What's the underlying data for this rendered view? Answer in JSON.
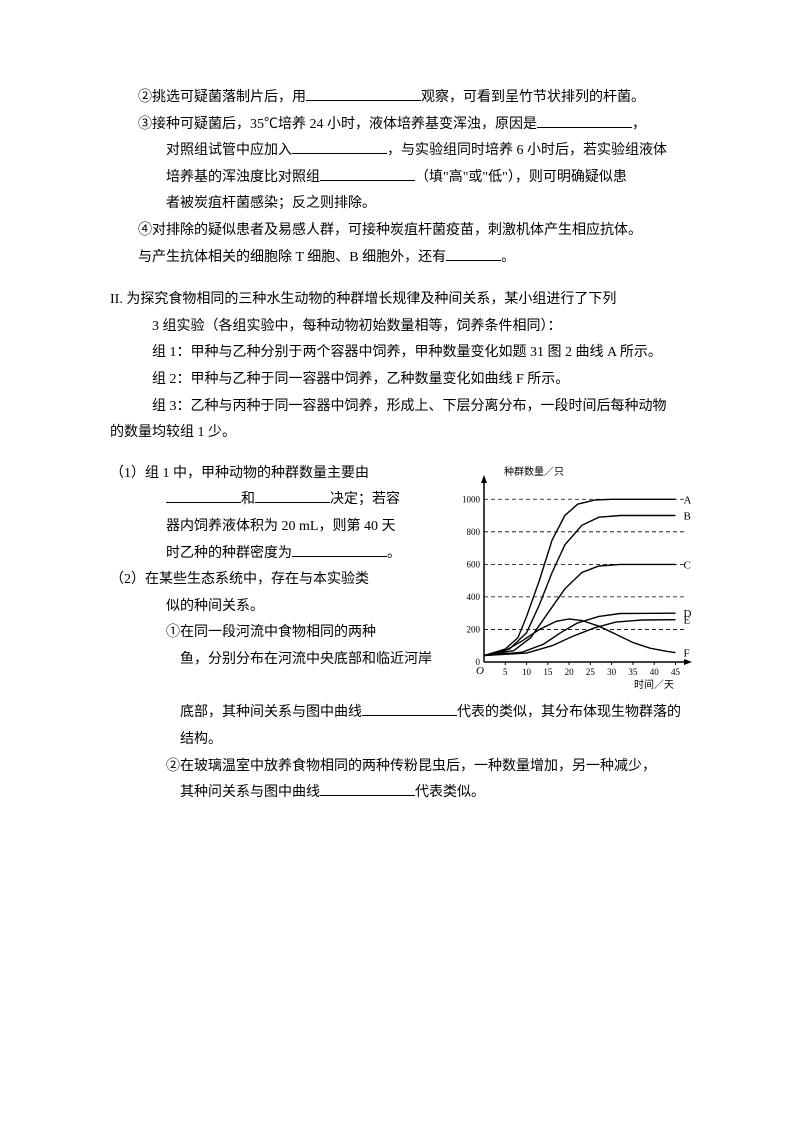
{
  "partI": {
    "q2": "②挑选可疑菌落制片后，用",
    "q2b": "观察，可看到呈竹节状排列的杆菌。",
    "q3a": "③接种可疑菌后，35℃培养 24 小时，液体培养基变浑浊，原因是",
    "q3b": "，",
    "q3c": "对照组试管中应加入",
    "q3d": "，与实验组同时培养 6 小时后，若实验组液体",
    "q3e": "培养基的浑浊度比对照组",
    "q3f": "（填\"高\"或\"低\"），则可明确疑似患",
    "q3g": "者被炭疽杆菌感染；反之则排除。",
    "q4a": "④对排除的疑似患者及易感人群，可接种炭疽杆菌疫苗，刺激机体产生相应抗体。",
    "q4b": "与产生抗体相关的细胞除 T 细胞、B 细胞外，还有",
    "q4c": "。"
  },
  "partII": {
    "heading": "II.    为探究食物相同的三种水生动物的种群增长规律及种间关系，某小组进行了下列",
    "heading2": "3 组实验（各组实验中，每种动物初始数量相等，饲养条件相同）：",
    "g1": "组 1：甲种与乙种分别于两个容器中饲养，甲种数量变化如题 31 图 2 曲线 A 所示。",
    "g2": "组 2：甲种与乙种于同一容器中饲养，乙种数量变化如曲线 F 所示。",
    "g3": "组 3：乙种与丙种于同一容器中饲养，形成上、下层分离分布，一段时间后每种动物",
    "g3b": "的数量均较组 1 少。",
    "q1a": "（1）组 1 中，甲种动物的种群数量主要由",
    "q1b": "和",
    "q1c": "决定；若容",
    "q1d": "器内饲养液体积为 20          mL，则第 40 天",
    "q1e": "时乙种的种群密度为",
    "q1f": "。",
    "q2a": "（2）在某些生态系统中，存在与本实验类",
    "q2b": "似的种间关系。",
    "q2c": "①在同一段河流中食物相同的两种",
    "q2d": "鱼，分别分布在河流中央底部和临近河岸",
    "q2e": "底部，其种间关系与图中曲线",
    "q2f": "代表的类似，其分布体现生物群落的",
    "q2g": "结构。",
    "q2h": "②在玻璃温室中放养食物相同的两种传粉昆虫后，一种数量增加，另一种减少，",
    "q2i": "其种问关系与图中曲线",
    "q2j": "代表类似。"
  },
  "chart": {
    "y_label": "种群数量／只",
    "x_label": "时间／天",
    "y_ticks": [
      0,
      200,
      400,
      600,
      800,
      1000
    ],
    "x_ticks": [
      0,
      5,
      10,
      15,
      20,
      25,
      30,
      35,
      40,
      45
    ],
    "y_max": 1100,
    "x_max": 47,
    "series": {
      "A": {
        "label": "A",
        "plateau": 1000,
        "pts": [
          [
            0,
            40
          ],
          [
            5,
            80
          ],
          [
            8,
            150
          ],
          [
            10,
            280
          ],
          [
            13,
            500
          ],
          [
            16,
            750
          ],
          [
            19,
            900
          ],
          [
            22,
            970
          ],
          [
            26,
            995
          ],
          [
            30,
            1000
          ],
          [
            45,
            1000
          ]
        ]
      },
      "B": {
        "label": "B",
        "plateau": 900,
        "pts": [
          [
            0,
            40
          ],
          [
            6,
            80
          ],
          [
            10,
            180
          ],
          [
            13,
            350
          ],
          [
            16,
            550
          ],
          [
            19,
            720
          ],
          [
            23,
            840
          ],
          [
            27,
            890
          ],
          [
            32,
            900
          ],
          [
            45,
            900
          ]
        ]
      },
      "C": {
        "label": "C",
        "plateau": 600,
        "pts": [
          [
            0,
            40
          ],
          [
            7,
            70
          ],
          [
            11,
            150
          ],
          [
            15,
            300
          ],
          [
            19,
            450
          ],
          [
            23,
            550
          ],
          [
            27,
            590
          ],
          [
            32,
            600
          ],
          [
            45,
            600
          ]
        ]
      },
      "D": {
        "label": "D",
        "plateau": 300,
        "pts": [
          [
            0,
            40
          ],
          [
            9,
            60
          ],
          [
            14,
            110
          ],
          [
            18,
            180
          ],
          [
            22,
            240
          ],
          [
            27,
            280
          ],
          [
            32,
            298
          ],
          [
            45,
            300
          ]
        ]
      },
      "E": {
        "label": "E",
        "plateau": 260,
        "pts": [
          [
            0,
            40
          ],
          [
            10,
            55
          ],
          [
            16,
            100
          ],
          [
            21,
            160
          ],
          [
            26,
            210
          ],
          [
            31,
            245
          ],
          [
            37,
            258
          ],
          [
            45,
            260
          ]
        ]
      },
      "F": {
        "label": "F",
        "pts": [
          [
            0,
            40
          ],
          [
            5,
            70
          ],
          [
            9,
            130
          ],
          [
            13,
            200
          ],
          [
            17,
            250
          ],
          [
            20,
            265
          ],
          [
            23,
            255
          ],
          [
            27,
            220
          ],
          [
            31,
            170
          ],
          [
            35,
            120
          ],
          [
            39,
            85
          ],
          [
            43,
            65
          ],
          [
            45,
            58
          ]
        ]
      }
    },
    "axis_color": "#000000",
    "grid_dash": "4,3",
    "line_width": 1.4
  }
}
